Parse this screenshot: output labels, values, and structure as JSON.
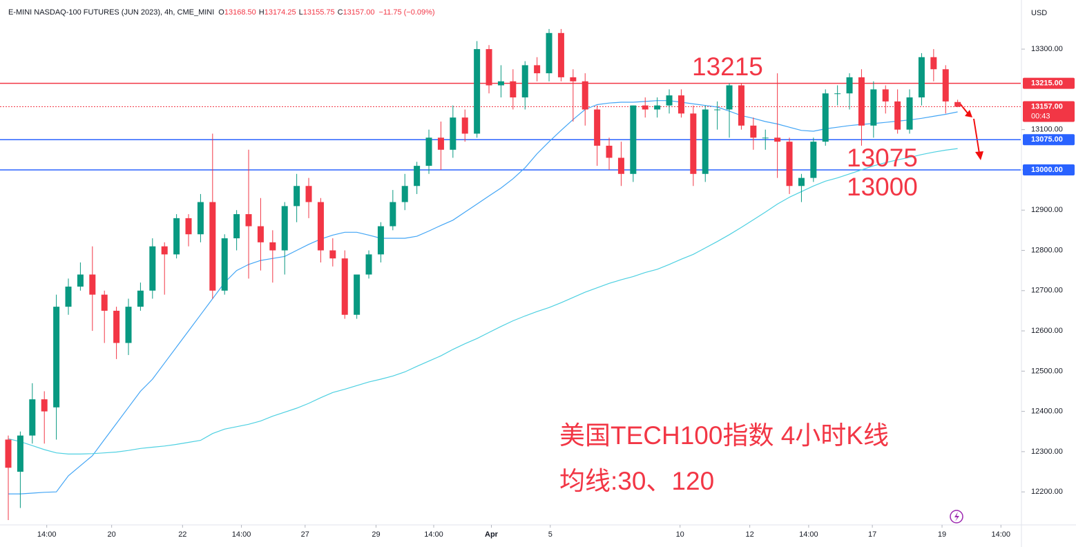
{
  "chart_data": {
    "type": "candlestick",
    "header": {
      "title": "E-MINI NASDAQ-100 FUTURES (JUN 2023), 4h, CME_MINI",
      "ohlc": [
        {
          "k": "O",
          "v": "13168.50"
        },
        {
          "k": "H",
          "v": "13174.25"
        },
        {
          "k": "L",
          "v": "13155.75"
        },
        {
          "k": "C",
          "v": "13157.00"
        }
      ],
      "change": "−11.75 (−0.09%)"
    },
    "currency": "USD",
    "up_color": "#089981",
    "down_color": "#f23645",
    "candles": [
      [
        12330,
        12340,
        12130,
        12260
      ],
      [
        12250,
        12350,
        12160,
        12340
      ],
      [
        12340,
        12470,
        12320,
        12430
      ],
      [
        12430,
        12450,
        12320,
        12400
      ],
      [
        12410,
        12690,
        12330,
        12660
      ],
      [
        12660,
        12730,
        12640,
        12710
      ],
      [
        12710,
        12770,
        12700,
        12740
      ],
      [
        12740,
        12810,
        12600,
        12690
      ],
      [
        12690,
        12700,
        12570,
        12650
      ],
      [
        12650,
        12660,
        12530,
        12570
      ],
      [
        12570,
        12680,
        12540,
        12660
      ],
      [
        12660,
        12720,
        12650,
        12700
      ],
      [
        12700,
        12830,
        12680,
        12810
      ],
      [
        12810,
        12820,
        12690,
        12790
      ],
      [
        12790,
        12890,
        12780,
        12880
      ],
      [
        12880,
        12890,
        12810,
        12840
      ],
      [
        12840,
        12940,
        12820,
        12920
      ],
      [
        12920,
        13090,
        12680,
        12700
      ],
      [
        12700,
        12840,
        12690,
        12830
      ],
      [
        12830,
        12900,
        12800,
        12890
      ],
      [
        12890,
        13050,
        12730,
        12860
      ],
      [
        12860,
        12930,
        12750,
        12820
      ],
      [
        12820,
        12850,
        12720,
        12800
      ],
      [
        12800,
        12920,
        12740,
        12910
      ],
      [
        12910,
        12990,
        12870,
        12960
      ],
      [
        12960,
        12980,
        12880,
        12920
      ],
      [
        12920,
        12930,
        12770,
        12800
      ],
      [
        12800,
        12830,
        12760,
        12780
      ],
      [
        12780,
        12800,
        12630,
        12640
      ],
      [
        12640,
        12740,
        12630,
        12740
      ],
      [
        12740,
        12800,
        12730,
        12790
      ],
      [
        12790,
        12870,
        12770,
        12860
      ],
      [
        12860,
        12950,
        12850,
        12920
      ],
      [
        12920,
        12990,
        12900,
        12960
      ],
      [
        12960,
        13020,
        12940,
        13010
      ],
      [
        13010,
        13100,
        12990,
        13080
      ],
      [
        13080,
        13120,
        13000,
        13050
      ],
      [
        13050,
        13160,
        13030,
        13130
      ],
      [
        13130,
        13150,
        13070,
        13090
      ],
      [
        13090,
        13320,
        13080,
        13300
      ],
      [
        13300,
        13310,
        13190,
        13210
      ],
      [
        13210,
        13260,
        13180,
        13220
      ],
      [
        13220,
        13250,
        13150,
        13180
      ],
      [
        13180,
        13270,
        13150,
        13260
      ],
      [
        13260,
        13280,
        13220,
        13240
      ],
      [
        13240,
        13350,
        13220,
        13340
      ],
      [
        13340,
        13350,
        13220,
        13230
      ],
      [
        13230,
        13250,
        13120,
        13220
      ],
      [
        13220,
        13240,
        13110,
        13150
      ],
      [
        13150,
        13160,
        13010,
        13060
      ],
      [
        13060,
        13080,
        13000,
        13030
      ],
      [
        13030,
        13070,
        12960,
        12990
      ],
      [
        12990,
        13160,
        12970,
        13160
      ],
      [
        13160,
        13180,
        13130,
        13150
      ],
      [
        13150,
        13180,
        13130,
        13160
      ],
      [
        13160,
        13200,
        13140,
        13185
      ],
      [
        13185,
        13200,
        13130,
        13140
      ],
      [
        13140,
        13160,
        12960,
        12990
      ],
      [
        12990,
        13160,
        12970,
        13150
      ],
      [
        13150,
        13170,
        13100,
        13150
      ],
      [
        13150,
        13215,
        13080,
        13210
      ],
      [
        13210,
        13215,
        13100,
        13110
      ],
      [
        13110,
        13130,
        13050,
        13080
      ],
      [
        13080,
        13100,
        13050,
        13080
      ],
      [
        13080,
        13240,
        12980,
        13070
      ],
      [
        13070,
        13080,
        12940,
        12960
      ],
      [
        12960,
        12990,
        12920,
        12980
      ],
      [
        12980,
        13080,
        12970,
        13070
      ],
      [
        13070,
        13200,
        13060,
        13190
      ],
      [
        13190,
        13210,
        13160,
        13190
      ],
      [
        13190,
        13240,
        13150,
        13230
      ],
      [
        13230,
        13250,
        13060,
        13110
      ],
      [
        13110,
        13220,
        13080,
        13200
      ],
      [
        13200,
        13210,
        13140,
        13170
      ],
      [
        13170,
        13200,
        13090,
        13100
      ],
      [
        13100,
        13200,
        13090,
        13180
      ],
      [
        13180,
        13290,
        13160,
        13280
      ],
      [
        13280,
        13300,
        13220,
        13250
      ],
      [
        13250,
        13260,
        13140,
        13170
      ],
      [
        13168.5,
        13174.25,
        13155.75,
        13157
      ]
    ],
    "ma_lines": [
      {
        "color": "#42a5f5",
        "values": [
          12195,
          12195,
          12197,
          12199,
          12200,
          12240,
          12265,
          12290,
          12330,
          12370,
          12410,
          12450,
          12480,
          12520,
          12560,
          12600,
          12640,
          12680,
          12720,
          12750,
          12765,
          12775,
          12780,
          12785,
          12800,
          12815,
          12828,
          12838,
          12845,
          12845,
          12838,
          12830,
          12830,
          12830,
          12835,
          12848,
          12862,
          12875,
          12895,
          12915,
          12935,
          12955,
          12978,
          13005,
          13040,
          13070,
          13098,
          13125,
          13150,
          13162,
          13166,
          13168,
          13168,
          13170,
          13172,
          13172,
          13168,
          13164,
          13160,
          13156,
          13146,
          13135,
          13128,
          13120,
          13114,
          13106,
          13098,
          13096,
          13102,
          13106,
          13110,
          13113,
          13115,
          13118,
          13121,
          13124,
          13128,
          13133,
          13138,
          13144
        ]
      },
      {
        "color": "#4dd0e1",
        "values": [
          12332,
          12325,
          12315,
          12305,
          12297,
          12294,
          12294,
          12295,
          12297,
          12299,
          12303,
          12308,
          12311,
          12314,
          12318,
          12323,
          12328,
          12345,
          12356,
          12362,
          12368,
          12376,
          12388,
          12398,
          12408,
          12420,
          12434,
          12447,
          12455,
          12464,
          12473,
          12480,
          12488,
          12498,
          12512,
          12525,
          12538,
          12554,
          12568,
          12581,
          12596,
          12611,
          12625,
          12637,
          12648,
          12658,
          12670,
          12683,
          12696,
          12707,
          12718,
          12727,
          12735,
          12745,
          12753,
          12765,
          12778,
          12790,
          12806,
          12822,
          12839,
          12857,
          12876,
          12895,
          12915,
          12932,
          12946,
          12960,
          12972,
          12980,
          12990,
          13000,
          13010,
          13018,
          13025,
          13031,
          13038,
          13044,
          13049,
          13053
        ]
      }
    ],
    "xlim": [
      -0.69,
      84.25
    ],
    "ylim": [
      12118,
      13422
    ],
    "xticks": [
      {
        "value": 3.2,
        "label": "14:00"
      },
      {
        "value": 8.6,
        "label": "20"
      },
      {
        "value": 14.5,
        "label": "22"
      },
      {
        "value": 19.4,
        "label": "14:00"
      },
      {
        "value": 24.7,
        "label": "27"
      },
      {
        "value": 30.6,
        "label": "29"
      },
      {
        "value": 35.4,
        "label": "14:00"
      },
      {
        "value": 40.2,
        "label": "Apr"
      },
      {
        "value": 45.1,
        "label": "5"
      },
      {
        "value": 55.9,
        "label": "10"
      },
      {
        "value": 61.7,
        "label": "12"
      },
      {
        "value": 66.6,
        "label": "14:00"
      },
      {
        "value": 71.9,
        "label": "17"
      },
      {
        "value": 77.7,
        "label": "19"
      },
      {
        "value": 82.6,
        "label": "14:00"
      }
    ],
    "yticks": [
      {
        "value": 12200,
        "label": "12200.00"
      },
      {
        "value": 12300,
        "label": "12300.00"
      },
      {
        "value": 12400,
        "label": "12400.00"
      },
      {
        "value": 12500,
        "label": "12500.00"
      },
      {
        "value": 12600,
        "label": "12600.00"
      },
      {
        "value": 12700,
        "label": "12700.00"
      },
      {
        "value": 12800,
        "label": "12800.00"
      },
      {
        "value": 12900,
        "label": "12900.00"
      },
      {
        "value": 13000,
        "label": "13000.00"
      },
      {
        "value": 13100,
        "label": "13100.00"
      },
      {
        "value": 13300,
        "label": "13300.00"
      }
    ],
    "levels": [
      {
        "value": 13215,
        "label": "13215.00",
        "color": "#f23645",
        "dashed": false
      },
      {
        "value": 13075,
        "label": "13075.00",
        "color": "#2962ff",
        "dashed": false
      },
      {
        "value": 13000,
        "label": "13000.00",
        "color": "#2962ff",
        "dashed": false
      },
      {
        "value": 13157,
        "label": "13157.00",
        "countdown": "00:43",
        "color": "#f23645",
        "dashed": true
      }
    ],
    "annotations": [
      "13215",
      "13075",
      "13000",
      "美国TECH100指数 4小时K线",
      "均线:30、120"
    ]
  }
}
